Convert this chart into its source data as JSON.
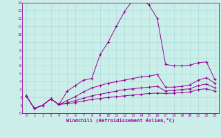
{
  "xlabel": "Windchill (Refroidissement éolien,°C)",
  "xlim": [
    -0.5,
    23.5
  ],
  "ylim": [
    0,
    14
  ],
  "xticks": [
    0,
    1,
    2,
    3,
    4,
    5,
    6,
    7,
    8,
    9,
    10,
    11,
    12,
    13,
    14,
    15,
    16,
    17,
    18,
    19,
    20,
    21,
    22,
    23
  ],
  "yticks": [
    0,
    1,
    2,
    3,
    4,
    5,
    6,
    7,
    8,
    9,
    10,
    11,
    12,
    13,
    14
  ],
  "bg_color": "#cceee8",
  "line_color": "#990099",
  "grid_color": "#aadddd",
  "curves": [
    [
      2.2,
      0.6,
      1.0,
      1.8,
      1.1,
      2.8,
      3.5,
      4.2,
      4.4,
      7.4,
      9.0,
      11.0,
      12.9,
      14.3,
      14.5,
      13.7,
      12.0,
      6.2,
      6.0,
      6.0,
      6.1,
      6.4,
      6.5,
      4.3
    ],
    [
      2.2,
      0.6,
      1.0,
      1.8,
      1.1,
      1.6,
      2.1,
      2.7,
      3.2,
      3.5,
      3.8,
      4.0,
      4.2,
      4.4,
      4.6,
      4.7,
      4.9,
      3.3,
      3.3,
      3.4,
      3.6,
      4.2,
      4.5,
      3.8
    ],
    [
      2.2,
      0.6,
      1.0,
      1.8,
      1.1,
      1.3,
      1.6,
      1.9,
      2.2,
      2.4,
      2.6,
      2.8,
      3.0,
      3.1,
      3.2,
      3.3,
      3.4,
      2.8,
      2.9,
      3.0,
      3.1,
      3.5,
      3.7,
      3.2
    ],
    [
      2.2,
      0.6,
      1.0,
      1.8,
      1.1,
      1.2,
      1.35,
      1.55,
      1.75,
      1.85,
      2.0,
      2.1,
      2.2,
      2.3,
      2.4,
      2.5,
      2.55,
      2.5,
      2.55,
      2.6,
      2.7,
      3.0,
      3.1,
      2.8
    ]
  ]
}
